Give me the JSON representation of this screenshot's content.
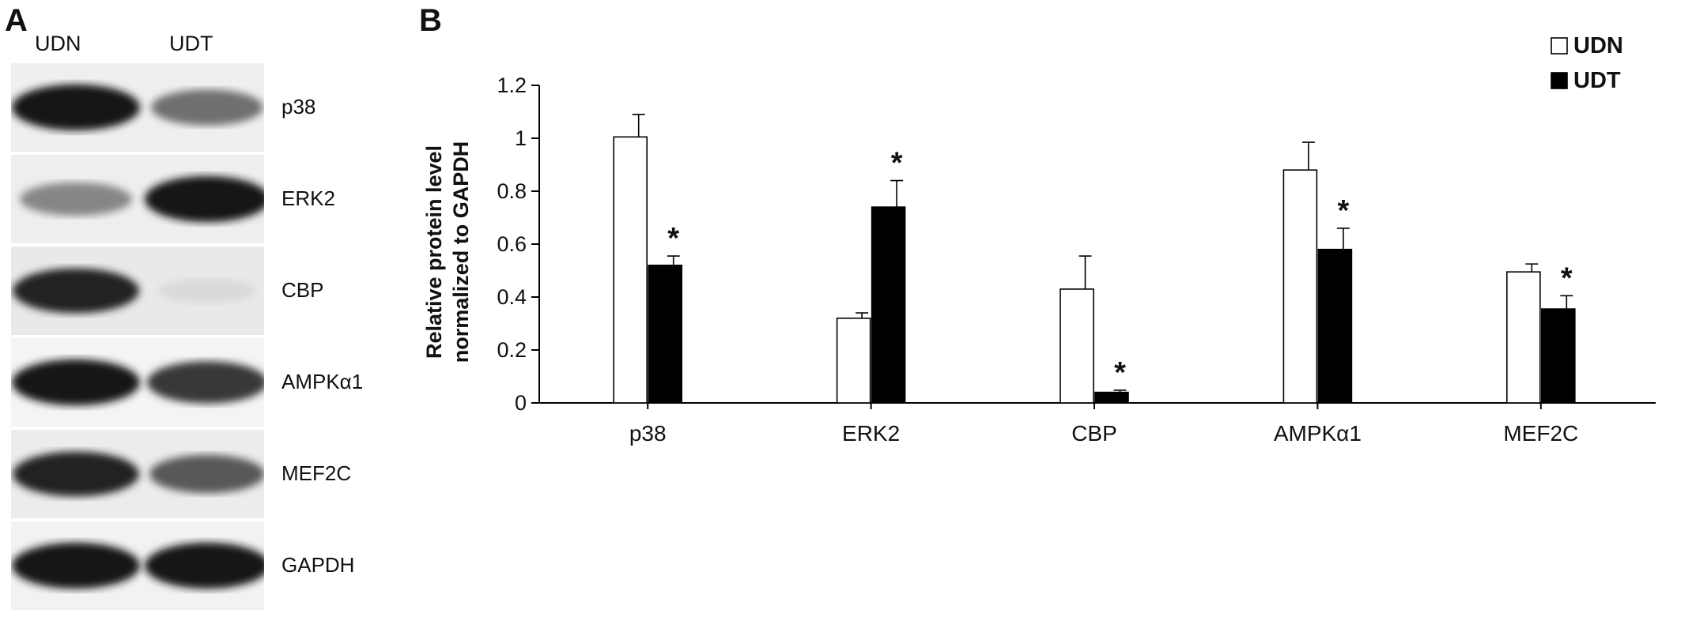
{
  "panels": {
    "a_letter": "A",
    "b_letter": "B"
  },
  "blot": {
    "lanes": [
      "UDN",
      "UDT"
    ],
    "rows": [
      {
        "label": "p38",
        "udn_intensity": 0.95,
        "udt_intensity": 0.55,
        "bg": "#efefef"
      },
      {
        "label": "ERK2",
        "udn_intensity": 0.45,
        "udt_intensity": 0.95,
        "bg": "#eeeeee"
      },
      {
        "label": "CBP",
        "udn_intensity": 0.9,
        "udt_intensity": 0.08,
        "bg": "#e9e9e9"
      },
      {
        "label": "AMPKα1",
        "udn_intensity": 0.95,
        "udt_intensity": 0.8,
        "bg": "#f4f4f4"
      },
      {
        "label": "MEF2C",
        "udn_intensity": 0.9,
        "udt_intensity": 0.65,
        "bg": "#ececec"
      },
      {
        "label": "GAPDH",
        "udn_intensity": 0.95,
        "udt_intensity": 0.95,
        "bg": "#f2f2f2"
      }
    ]
  },
  "chart_data": {
    "type": "bar",
    "categories": [
      "p38",
      "ERK2",
      "CBP",
      "AMPKα1",
      "MEF2C"
    ],
    "series": [
      {
        "name": "UDN",
        "values": [
          1.005,
          0.32,
          0.43,
          0.88,
          0.495
        ],
        "errors": [
          0.085,
          0.02,
          0.125,
          0.105,
          0.03
        ],
        "color": "#ffffff"
      },
      {
        "name": "UDT",
        "values": [
          0.52,
          0.74,
          0.04,
          0.58,
          0.355
        ],
        "errors": [
          0.035,
          0.1,
          0.008,
          0.08,
          0.05
        ],
        "color": "#000000"
      }
    ],
    "significance": [
      {
        "category": "p38",
        "series": "UDT",
        "mark": "*"
      },
      {
        "category": "ERK2",
        "series": "UDT",
        "mark": "*"
      },
      {
        "category": "CBP",
        "series": "UDT",
        "mark": "*"
      },
      {
        "category": "AMPKα1",
        "series": "UDT",
        "mark": "*"
      },
      {
        "category": "MEF2C",
        "series": "UDT",
        "mark": "*"
      }
    ],
    "ylabel_lines": [
      "Relative protein level",
      "normalized to GAPDH"
    ],
    "ylim": [
      0,
      1.2
    ],
    "yticks": [
      0,
      0.2,
      0.4,
      0.6,
      0.8,
      1,
      1.2
    ],
    "ytick_labels": [
      "0",
      "0.2",
      "0.4",
      "0.6",
      "0.8",
      "1",
      "1.2"
    ],
    "grid": false,
    "legend_position": "top-right"
  }
}
